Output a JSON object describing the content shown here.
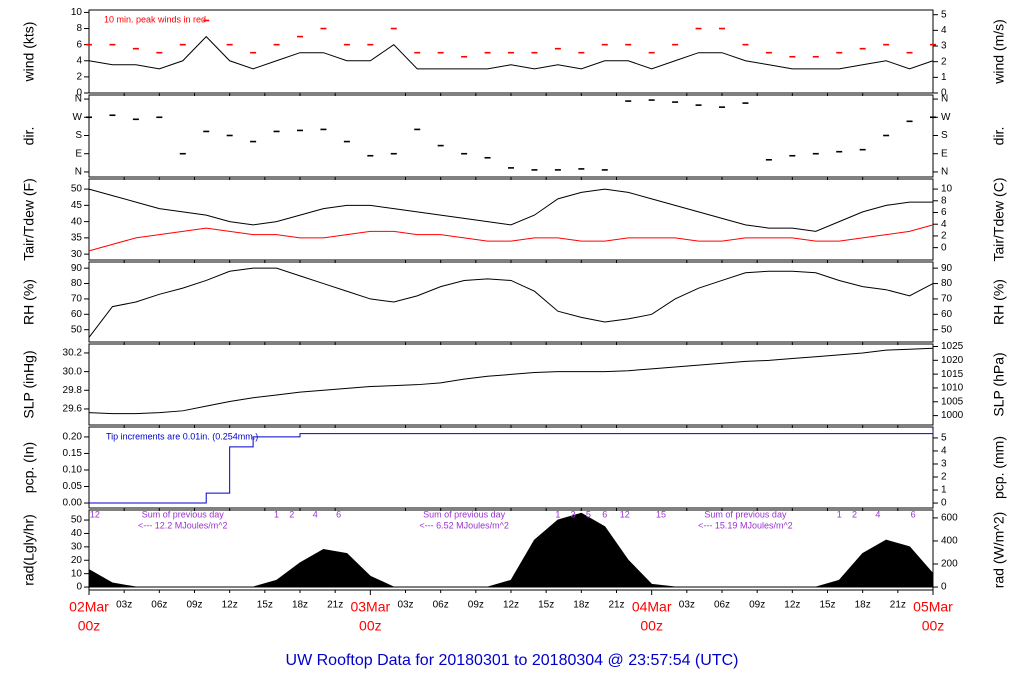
{
  "footer": "UW Rooftop Data for 20180301  to  20180304 @ 23:57:54  (UTC)",
  "time_axis": {
    "x": [
      0,
      2,
      4,
      6,
      8,
      10,
      12,
      14,
      16,
      18,
      20,
      22,
      24,
      26,
      28,
      30,
      32,
      34,
      36,
      38,
      40,
      42,
      44,
      46,
      48,
      50,
      52,
      54,
      56,
      58,
      60,
      62,
      64,
      66,
      68,
      70,
      72
    ],
    "xlim": [
      0,
      72
    ],
    "xticks": [
      {
        "value": 3,
        "label": "03z"
      },
      {
        "value": 6,
        "label": "06z"
      },
      {
        "value": 9,
        "label": "09z"
      },
      {
        "value": 12,
        "label": "12z"
      },
      {
        "value": 15,
        "label": "15z"
      },
      {
        "value": 18,
        "label": "18z"
      },
      {
        "value": 21,
        "label": "21z"
      },
      {
        "value": 27,
        "label": "03z"
      },
      {
        "value": 30,
        "label": "06z"
      },
      {
        "value": 33,
        "label": "09z"
      },
      {
        "value": 36,
        "label": "12z"
      },
      {
        "value": 39,
        "label": "15z"
      },
      {
        "value": 42,
        "label": "18z"
      },
      {
        "value": 45,
        "label": "21z"
      },
      {
        "value": 51,
        "label": "03z"
      },
      {
        "value": 54,
        "label": "06z"
      },
      {
        "value": 57,
        "label": "09z"
      },
      {
        "value": 60,
        "label": "12z"
      },
      {
        "value": 63,
        "label": "15z"
      },
      {
        "value": 66,
        "label": "18z"
      },
      {
        "value": 69,
        "label": "21z"
      }
    ],
    "date_ticks": [
      {
        "value": 0,
        "label": "02Mar",
        "hour": "00z"
      },
      {
        "value": 24,
        "label": "03Mar",
        "hour": "00z"
      },
      {
        "value": 48,
        "label": "04Mar",
        "hour": "00z"
      },
      {
        "value": 72,
        "label": "05Mar",
        "hour": "00z"
      }
    ]
  },
  "chart_data": [
    {
      "type": "line",
      "ylabel": "wind (kts)",
      "y2label": "wind (m/s)",
      "note": "10 min. peak winds in red",
      "note_color": "#ff0000",
      "ylim": [
        0,
        10.3
      ],
      "yticks": [
        0,
        2,
        4,
        6,
        8,
        10
      ],
      "y2lim": [
        0,
        5.3
      ],
      "y2ticks": [
        0,
        1,
        2,
        3,
        4,
        5
      ],
      "series": [
        {
          "name": "wind",
          "type": "line",
          "color": "#000000",
          "values": [
            4,
            3.5,
            3.5,
            3,
            4,
            7,
            4,
            3,
            4,
            5,
            5,
            4,
            4,
            6,
            3,
            3,
            3,
            3,
            3.5,
            3,
            3.5,
            3,
            4,
            4,
            3,
            4,
            5,
            5,
            4,
            3.5,
            3,
            3,
            3,
            3.5,
            4,
            3,
            4
          ]
        },
        {
          "name": "peak",
          "type": "dash",
          "color": "#ff0000",
          "values": [
            6,
            6,
            5.5,
            5,
            6,
            9,
            6,
            5,
            6,
            7,
            8,
            6,
            6,
            8,
            5,
            5,
            4.5,
            5,
            5,
            5,
            5.5,
            5,
            6,
            6,
            5,
            6,
            8,
            8,
            6,
            5,
            4.5,
            4.5,
            5,
            5.5,
            6,
            5,
            6
          ]
        }
      ]
    },
    {
      "type": "scatter",
      "ylabel": "dir.",
      "y2label": "dir.",
      "ticks_both_sides": true,
      "ylim": [
        -25,
        380
      ],
      "yticks": [
        {
          "value": 0,
          "label": "N"
        },
        {
          "value": 90,
          "label": "E"
        },
        {
          "value": 180,
          "label": "S"
        },
        {
          "value": 270,
          "label": "W"
        },
        {
          "value": 360,
          "label": "N"
        }
      ],
      "series": [
        {
          "name": "direction",
          "type": "dash",
          "color": "#000000",
          "values": [
            270,
            280,
            260,
            270,
            90,
            200,
            180,
            150,
            200,
            205,
            210,
            150,
            80,
            90,
            210,
            130,
            90,
            70,
            20,
            10,
            10,
            15,
            10,
            350,
            355,
            345,
            330,
            320,
            340,
            60,
            80,
            90,
            100,
            110,
            180,
            250,
            270
          ]
        }
      ]
    },
    {
      "type": "line",
      "ylabel": "Tair/Tdew (F)",
      "y2label": "Tair/Tdew (C)",
      "ylim": [
        28.2,
        53.1
      ],
      "yticks": [
        30,
        35,
        40,
        45,
        50
      ],
      "y2lim": [
        -2.11,
        11.72
      ],
      "y2ticks": [
        0,
        2,
        4,
        6,
        8,
        10
      ],
      "series": [
        {
          "name": "Tair",
          "type": "line",
          "color": "#000000",
          "values": [
            50,
            48,
            46,
            44,
            43,
            42,
            40,
            39,
            40,
            42,
            44,
            45,
            45,
            44,
            43,
            42,
            41,
            40,
            39,
            42,
            47,
            49,
            50,
            49,
            47,
            45,
            43,
            41,
            39,
            38,
            38,
            37,
            40,
            43,
            45,
            46,
            46
          ]
        },
        {
          "name": "Tdew",
          "type": "line",
          "color": "#ff0000",
          "values": [
            31,
            33,
            35,
            36,
            37,
            38,
            37,
            36,
            36,
            35,
            35,
            36,
            37,
            37,
            36,
            36,
            35,
            34,
            34,
            35,
            35,
            34,
            34,
            35,
            35,
            35,
            34,
            34,
            35,
            35,
            35,
            34,
            34,
            35,
            36,
            37,
            39
          ]
        }
      ]
    },
    {
      "type": "line",
      "ylabel": "RH (%)",
      "y2label": "RH (%)",
      "ticks_both_sides": true,
      "ylim": [
        42,
        94
      ],
      "yticks": [
        50,
        60,
        70,
        80,
        90
      ],
      "series": [
        {
          "name": "RH",
          "type": "line",
          "color": "#000000",
          "values": [
            45,
            65,
            68,
            73,
            77,
            82,
            88,
            90,
            90,
            85,
            80,
            75,
            70,
            68,
            72,
            78,
            82,
            83,
            82,
            75,
            62,
            58,
            55,
            57,
            60,
            70,
            77,
            82,
            87,
            88,
            88,
            87,
            82,
            78,
            76,
            72,
            80
          ]
        }
      ]
    },
    {
      "type": "line",
      "ylabel": "SLP (inHg)",
      "y2label": "SLP (hPa)",
      "ylim": [
        29.428,
        30.296
      ],
      "yticks": [
        {
          "value": 29.6,
          "label": "29.6"
        },
        {
          "value": 29.8,
          "label": "29.8"
        },
        {
          "value": 30.0,
          "label": "30.0"
        },
        {
          "value": 30.2,
          "label": "30.2"
        }
      ],
      "y2lim": [
        996.6,
        1025.9
      ],
      "y2ticks": [
        1000,
        1005,
        1010,
        1015,
        1020,
        1025
      ],
      "series": [
        {
          "name": "SLP",
          "type": "line",
          "color": "#000000",
          "values": [
            29.56,
            29.55,
            29.55,
            29.56,
            29.58,
            29.63,
            29.68,
            29.72,
            29.75,
            29.78,
            29.8,
            29.82,
            29.84,
            29.85,
            29.86,
            29.88,
            29.92,
            29.95,
            29.97,
            29.99,
            30.0,
            30.0,
            30.0,
            30.01,
            30.03,
            30.05,
            30.07,
            30.09,
            30.11,
            30.12,
            30.14,
            30.16,
            30.18,
            30.2,
            30.23,
            30.24,
            30.25
          ]
        }
      ]
    },
    {
      "type": "line",
      "ylabel": "pcp. (In)",
      "y2label": "pcp. (mm)",
      "note": "Tip increments are 0.01in. (0.254mm.)",
      "note_color": "#0000cc",
      "ylim": [
        -0.015,
        0.23
      ],
      "yticks": [
        {
          "value": 0,
          "label": "0.00"
        },
        {
          "value": 0.05,
          "label": "0.05"
        },
        {
          "value": 0.1,
          "label": "0.10"
        },
        {
          "value": 0.15,
          "label": "0.15"
        },
        {
          "value": 0.2,
          "label": "0.20"
        }
      ],
      "y2lim": [
        -0.38,
        5.84
      ],
      "y2ticks": [
        0,
        1,
        2,
        3,
        4,
        5
      ],
      "series": [
        {
          "name": "precipitation",
          "type": "step",
          "color": "#0000cc",
          "values": [
            0,
            0,
            0,
            0,
            0,
            0.03,
            0.17,
            0.2,
            0.2,
            0.21,
            0.21,
            0.21,
            0.21,
            0.21,
            0.21,
            0.21,
            0.21,
            0.21,
            0.21,
            0.21,
            0.21,
            0.21,
            0.21,
            0.21,
            0.21,
            0.21,
            0.21,
            0.21,
            0.21,
            0.21,
            0.21,
            0.21,
            0.21,
            0.21,
            0.21,
            0.21,
            0.22
          ]
        }
      ]
    },
    {
      "type": "area",
      "ylabel": "rad(Lgly/hr)",
      "y2label": "rad (W/m^2)",
      "ylim": [
        -2.2,
        57.5
      ],
      "yticks": [
        0,
        10,
        20,
        30,
        40,
        50
      ],
      "y2lim": [
        -25.6,
        668.7
      ],
      "y2ticks": [
        0,
        200,
        400,
        600
      ],
      "series": [
        {
          "name": "radiation",
          "type": "area",
          "color": "#000000",
          "values": [
            13,
            3,
            0,
            0,
            0,
            0,
            0,
            0,
            5,
            18,
            28,
            25,
            8,
            0,
            0,
            0,
            0,
            0,
            5,
            35,
            50,
            55,
            45,
            20,
            2,
            0,
            0,
            0,
            0,
            0,
            0,
            0,
            5,
            25,
            35,
            30,
            10
          ]
        }
      ],
      "hour_marks": [
        {
          "x": 0.5,
          "text": "12"
        },
        {
          "x": 16,
          "text": "1"
        },
        {
          "x": 17.3,
          "text": "2"
        },
        {
          "x": 19.3,
          "text": "4"
        },
        {
          "x": 21.3,
          "text": "6"
        },
        {
          "x": 40,
          "text": "1"
        },
        {
          "x": 41.3,
          "text": "3"
        },
        {
          "x": 42.6,
          "text": "5"
        },
        {
          "x": 44,
          "text": "6"
        },
        {
          "x": 45.7,
          "text": "12"
        },
        {
          "x": 48.8,
          "text": "15"
        },
        {
          "x": 64,
          "text": "1"
        },
        {
          "x": 65.3,
          "text": "2"
        },
        {
          "x": 67.3,
          "text": "4"
        },
        {
          "x": 70.3,
          "text": "6"
        }
      ],
      "day_notes": [
        {
          "x": 8,
          "line1": "Sum of previous day",
          "line2": "<--- 12.2 MJoules/m^2"
        },
        {
          "x": 32,
          "line1": "Sum of previous day",
          "line2": "<--- 6.52 MJoules/m^2"
        },
        {
          "x": 56,
          "line1": "Sum of previous day",
          "line2": "<--- 15.19 MJoules/m^2"
        }
      ]
    }
  ]
}
